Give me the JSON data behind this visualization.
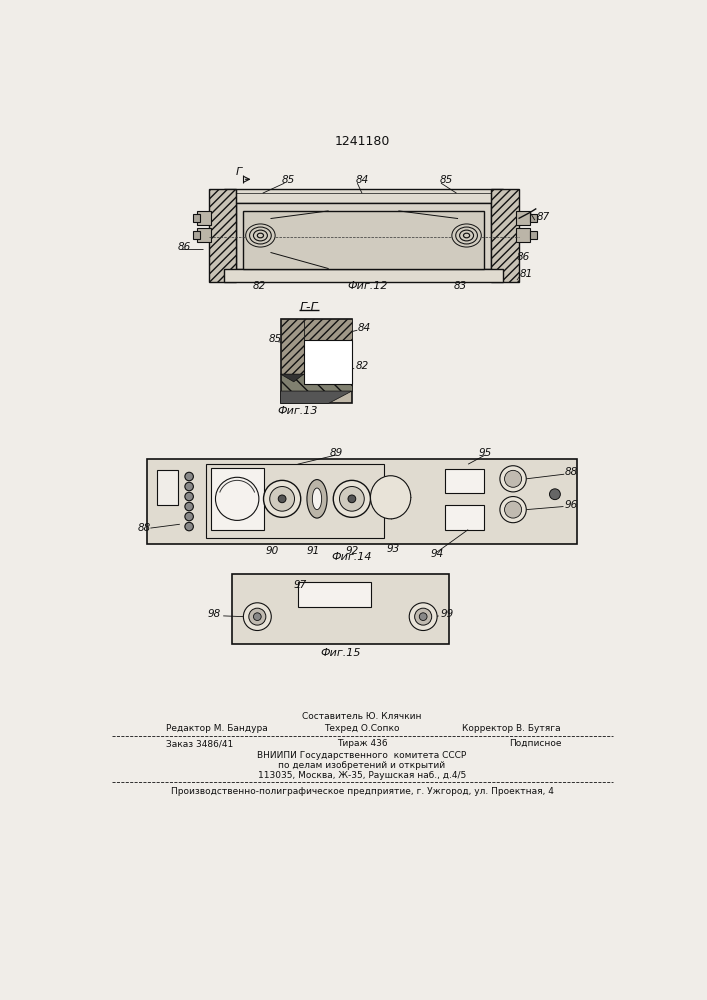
{
  "title": "1241180",
  "bg_color": "#f0ede8",
  "fig_width": 7.07,
  "fig_height": 10.0,
  "footer": {
    "editor": "Редактор М. Бандура",
    "composer": "Составитель Ю. Клячкин",
    "techred": "Техред О.Сопко",
    "corrector": "Корректор В. Бутяга",
    "order": "Заказ 3486/41",
    "tirazh": "Тираж 436",
    "podpisnoe": "Подписное",
    "vniipи": "ВНИИПИ Государственного  комитета СССР",
    "po_delam": "по делам изобретений и открытий",
    "address": "113035, Москва, Ж-35, Раушская наб., д.4/5",
    "factory": "Производственно-полиграфическое предприятие, г. Ужгород, ул. Проектная, 4"
  }
}
